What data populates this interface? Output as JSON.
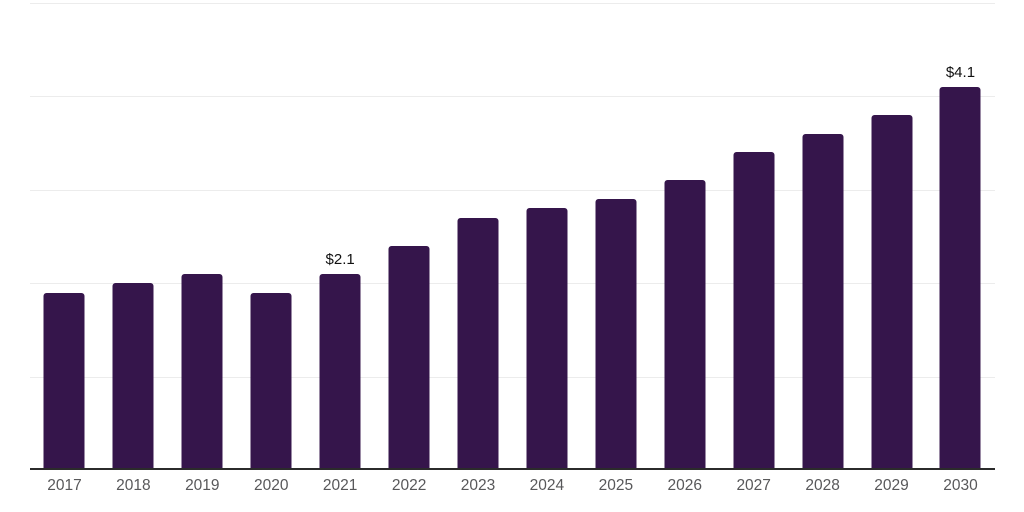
{
  "chart_data": {
    "type": "bar",
    "title": "",
    "xlabel": "",
    "ylabel": "",
    "categories": [
      "2017",
      "2018",
      "2019",
      "2020",
      "2021",
      "2022",
      "2023",
      "2024",
      "2025",
      "2026",
      "2027",
      "2028",
      "2029",
      "2030"
    ],
    "values": [
      1.9,
      2.0,
      2.1,
      1.9,
      2.1,
      2.4,
      2.7,
      2.8,
      2.9,
      3.1,
      3.4,
      3.6,
      3.8,
      4.1
    ],
    "data_labels": {
      "2021": "$2.1",
      "2030": "$4.1"
    },
    "ylim": [
      0,
      5
    ],
    "grid_step": 1,
    "grid": true,
    "legend": false,
    "bar_color": "#35154B",
    "grid_color": "#ececec",
    "axis_color": "#2b2b2b",
    "tick_label_color": "#58585a",
    "value_label_color": "#111111",
    "background_color": "#ffffff"
  }
}
